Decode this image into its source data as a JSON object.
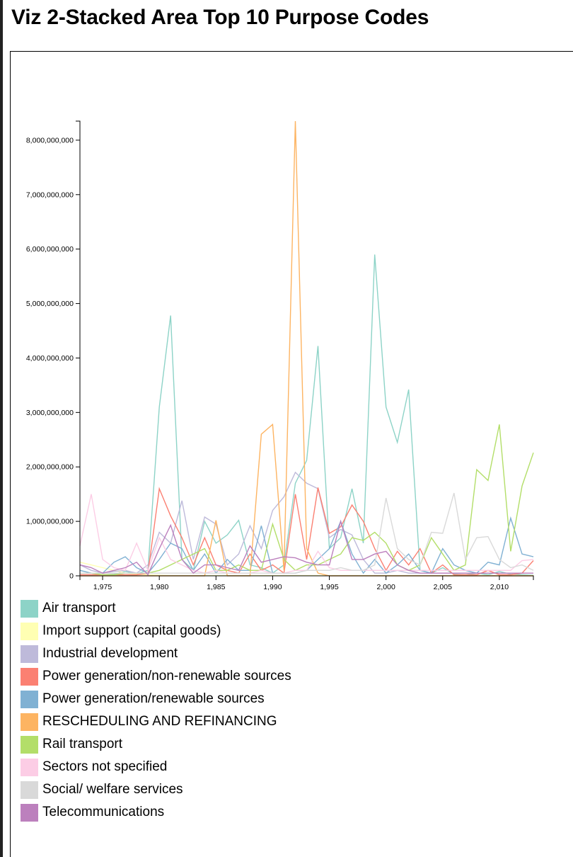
{
  "page": {
    "title": "Viz 2-Stacked Area Top 10 Purpose Codes"
  },
  "chart_data": {
    "type": "line",
    "title": "Viz 2-Stacked Area Top 10 Purpose Codes",
    "xlabel": "",
    "ylabel": "",
    "xlim": [
      1973,
      2013
    ],
    "ylim": [
      0,
      8350000000
    ],
    "grid": false,
    "legend_position": "bottom-left",
    "x_ticks": [
      1975,
      1980,
      1985,
      1990,
      1995,
      2000,
      2005,
      2010
    ],
    "x_tick_labels": [
      "1,975",
      "1,980",
      "1,985",
      "1,990",
      "1,995",
      "2,000",
      "2,005",
      "2,010"
    ],
    "y_ticks": [
      0,
      1000000000,
      2000000000,
      3000000000,
      4000000000,
      5000000000,
      6000000000,
      7000000000,
      8000000000
    ],
    "y_tick_labels": [
      "0",
      "1,000,000,000",
      "2,000,000,000",
      "3,000,000,000",
      "4,000,000,000",
      "5,000,000,000",
      "6,000,000,000",
      "7,000,000,000",
      "8,000,000,000"
    ],
    "x": [
      1973,
      1974,
      1975,
      1976,
      1977,
      1978,
      1979,
      1980,
      1981,
      1982,
      1983,
      1984,
      1985,
      1986,
      1987,
      1988,
      1989,
      1990,
      1991,
      1992,
      1993,
      1994,
      1995,
      1996,
      1997,
      1998,
      1999,
      2000,
      2001,
      2002,
      2003,
      2004,
      2005,
      2006,
      2007,
      2008,
      2009,
      2010,
      2011,
      2012,
      2013
    ],
    "series": [
      {
        "name": "Air transport",
        "color": "#8dd3c7",
        "values": [
          100000000,
          50000000,
          20000000,
          30000000,
          80000000,
          40000000,
          100000000,
          3100000000,
          4780000000,
          300000000,
          100000000,
          1000000000,
          600000000,
          750000000,
          1020000000,
          200000000,
          150000000,
          50000000,
          200000000,
          1700000000,
          2120000000,
          4220000000,
          500000000,
          700000000,
          1600000000,
          600000000,
          5900000000,
          3100000000,
          2450000000,
          3420000000,
          100000000,
          50000000,
          150000000,
          30000000,
          20000000,
          50000000,
          20000000,
          80000000,
          30000000,
          20000000,
          10000000
        ]
      },
      {
        "name": "Import support (capital goods)",
        "color": "#ffffb3",
        "values": [
          250000000,
          200000000,
          150000000,
          100000000,
          50000000,
          30000000,
          20000000,
          10000000,
          5000000,
          5000000,
          5000000,
          5000000,
          5000000,
          5000000,
          5000000,
          5000000,
          5000000,
          5000000,
          5000000,
          5000000,
          5000000,
          5000000,
          5000000,
          5000000,
          5000000,
          5000000,
          5000000,
          5000000,
          5000000,
          5000000,
          5000000,
          5000000,
          5000000,
          5000000,
          5000000,
          5000000,
          5000000,
          5000000,
          5000000,
          5000000,
          5000000
        ]
      },
      {
        "name": "Industrial development",
        "color": "#bebada",
        "values": [
          200000000,
          100000000,
          50000000,
          80000000,
          100000000,
          50000000,
          200000000,
          800000000,
          600000000,
          1380000000,
          300000000,
          1080000000,
          950000000,
          200000000,
          400000000,
          920000000,
          500000000,
          1200000000,
          1450000000,
          1900000000,
          1700000000,
          1600000000,
          700000000,
          850000000,
          750000000,
          300000000,
          50000000,
          50000000,
          100000000,
          50000000,
          50000000,
          50000000,
          50000000,
          50000000,
          50000000,
          50000000,
          50000000,
          50000000,
          50000000,
          50000000,
          50000000
        ]
      },
      {
        "name": "Power generation/non-renewable sources",
        "color": "#fb8072",
        "values": [
          20000000,
          20000000,
          20000000,
          20000000,
          20000000,
          20000000,
          50000000,
          1600000000,
          1100000000,
          700000000,
          200000000,
          700000000,
          200000000,
          100000000,
          50000000,
          400000000,
          100000000,
          200000000,
          50000000,
          1500000000,
          300000000,
          1620000000,
          780000000,
          900000000,
          1300000000,
          1000000000,
          500000000,
          100000000,
          450000000,
          200000000,
          500000000,
          50000000,
          200000000,
          20000000,
          20000000,
          20000000,
          100000000,
          20000000,
          20000000,
          50000000,
          280000000
        ]
      },
      {
        "name": "Power generation/renewable sources",
        "color": "#80b1d3",
        "values": [
          100000000,
          50000000,
          50000000,
          250000000,
          350000000,
          150000000,
          50000000,
          300000000,
          600000000,
          500000000,
          100000000,
          400000000,
          50000000,
          300000000,
          100000000,
          100000000,
          920000000,
          50000000,
          50000000,
          50000000,
          100000000,
          300000000,
          500000000,
          1000000000,
          400000000,
          50000000,
          300000000,
          50000000,
          200000000,
          400000000,
          100000000,
          50000000,
          500000000,
          200000000,
          100000000,
          50000000,
          250000000,
          200000000,
          1060000000,
          400000000,
          350000000
        ]
      },
      {
        "name": "RESCHEDULING AND REFINANCING",
        "color": "#fdb462",
        "values": [
          0,
          0,
          0,
          0,
          0,
          0,
          0,
          0,
          0,
          0,
          0,
          0,
          1020000000,
          0,
          0,
          0,
          2600000000,
          2780000000,
          100000000,
          8350000000,
          500000000,
          50000000,
          0,
          0,
          0,
          0,
          0,
          0,
          0,
          0,
          0,
          0,
          0,
          0,
          0,
          0,
          0,
          0,
          0,
          0,
          0
        ]
      },
      {
        "name": "Rail transport",
        "color": "#b3de69",
        "values": [
          50000000,
          50000000,
          20000000,
          20000000,
          50000000,
          50000000,
          50000000,
          100000000,
          200000000,
          300000000,
          400000000,
          500000000,
          100000000,
          100000000,
          200000000,
          100000000,
          100000000,
          950000000,
          300000000,
          100000000,
          200000000,
          200000000,
          300000000,
          400000000,
          700000000,
          650000000,
          800000000,
          600000000,
          200000000,
          100000000,
          200000000,
          700000000,
          400000000,
          100000000,
          200000000,
          1950000000,
          1750000000,
          2780000000,
          450000000,
          1650000000,
          2260000000
        ]
      },
      {
        "name": "Sectors not specified",
        "color": "#fccde5",
        "values": [
          550000000,
          1500000000,
          300000000,
          150000000,
          100000000,
          600000000,
          100000000,
          700000000,
          300000000,
          200000000,
          100000000,
          50000000,
          100000000,
          50000000,
          50000000,
          50000000,
          100000000,
          50000000,
          50000000,
          100000000,
          100000000,
          450000000,
          150000000,
          100000000,
          100000000,
          100000000,
          100000000,
          100000000,
          100000000,
          100000000,
          100000000,
          100000000,
          100000000,
          100000000,
          100000000,
          100000000,
          100000000,
          100000000,
          100000000,
          280000000,
          300000000
        ]
      },
      {
        "name": "Social/ welfare services",
        "color": "#d9d9d9",
        "values": [
          50000000,
          50000000,
          50000000,
          50000000,
          50000000,
          50000000,
          50000000,
          50000000,
          50000000,
          50000000,
          50000000,
          50000000,
          50000000,
          50000000,
          50000000,
          50000000,
          50000000,
          50000000,
          50000000,
          50000000,
          100000000,
          100000000,
          100000000,
          150000000,
          100000000,
          100000000,
          200000000,
          1430000000,
          500000000,
          300000000,
          200000000,
          800000000,
          780000000,
          1520000000,
          300000000,
          700000000,
          720000000,
          300000000,
          150000000,
          200000000,
          100000000
        ]
      },
      {
        "name": "Telecommunications",
        "color": "#bc80bd",
        "values": [
          200000000,
          150000000,
          50000000,
          100000000,
          150000000,
          250000000,
          20000000,
          500000000,
          930000000,
          300000000,
          50000000,
          200000000,
          200000000,
          150000000,
          100000000,
          550000000,
          250000000,
          300000000,
          350000000,
          330000000,
          250000000,
          200000000,
          200000000,
          1000000000,
          300000000,
          300000000,
          400000000,
          450000000,
          200000000,
          100000000,
          50000000,
          50000000,
          50000000,
          50000000,
          50000000,
          50000000,
          50000000,
          50000000,
          50000000,
          50000000,
          50000000
        ]
      }
    ]
  }
}
